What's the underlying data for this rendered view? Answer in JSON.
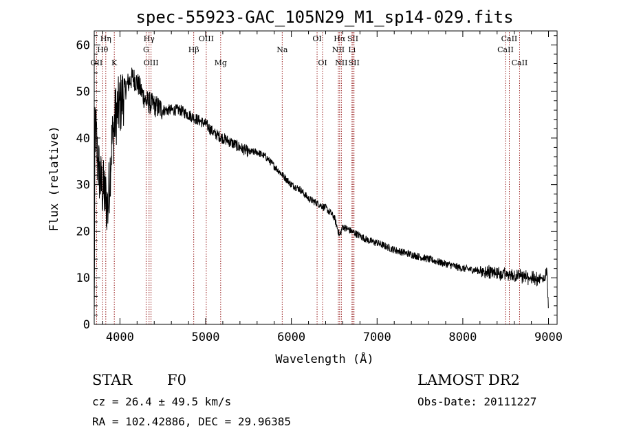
{
  "chart_data": {
    "type": "line",
    "title": "spec-55923-GAC_105N29_M1_sp14-029.fits",
    "xlabel": "Wavelength (Å)",
    "ylabel": "Flux (relative)",
    "xlim": [
      3700,
      9100
    ],
    "ylim": [
      0,
      63
    ],
    "xticks": [
      4000,
      5000,
      6000,
      7000,
      8000,
      9000
    ],
    "yticks": [
      0,
      10,
      20,
      30,
      40,
      50,
      60
    ],
    "grid": false,
    "line_color": "#000000",
    "marker_color": "#8b0000",
    "spectrum_anchors": {
      "x": [
        3700,
        3710,
        3740,
        3780,
        3820,
        3860,
        3900,
        3950,
        4000,
        4050,
        4100,
        4150,
        4200,
        4250,
        4300,
        4400,
        4500,
        4600,
        4700,
        4800,
        4900,
        5000,
        5100,
        5200,
        5300,
        5400,
        5500,
        5600,
        5700,
        5800,
        5900,
        6000,
        6100,
        6200,
        6300,
        6400,
        6500,
        6563,
        6600,
        6700,
        6800,
        6900,
        7000,
        7200,
        7400,
        7600,
        7800,
        8000,
        8200,
        8400,
        8600,
        8800,
        8900,
        8950,
        8980,
        9000
      ],
      "y": [
        1,
        44,
        35,
        30,
        28,
        25,
        38,
        45,
        47,
        50,
        52,
        53,
        52,
        50,
        48,
        47,
        46,
        46,
        46,
        45,
        44,
        43,
        41,
        40,
        39,
        38,
        37,
        37,
        36,
        34,
        32,
        30,
        29,
        27,
        26,
        25,
        23,
        19,
        21,
        20,
        19,
        18,
        17.5,
        16,
        15,
        14,
        13,
        12,
        11.5,
        11,
        10.5,
        10,
        9.5,
        10,
        12,
        2
      ]
    },
    "line_markers": [
      {
        "label": "Hη",
        "x": 3835,
        "row": 1
      },
      {
        "label": "Hθ",
        "x": 3798,
        "row": 2
      },
      {
        "label": "OII",
        "x": 3727,
        "row": 3
      },
      {
        "label": "K",
        "x": 3934,
        "row": 3
      },
      {
        "label": "Hγ",
        "x": 4340,
        "row": 1
      },
      {
        "label": "G",
        "x": 4305,
        "row": 2
      },
      {
        "label": "OIII",
        "x": 4363,
        "row": 3
      },
      {
        "label": "OIII",
        "x": 5007,
        "row": 1
      },
      {
        "label": "Hβ",
        "x": 4861,
        "row": 2
      },
      {
        "label": "Mg",
        "x": 5175,
        "row": 3
      },
      {
        "label": "Na",
        "x": 5893,
        "row": 2
      },
      {
        "label": "OI",
        "x": 6300,
        "row": 1
      },
      {
        "label": "OI",
        "x": 6364,
        "row": 3
      },
      {
        "label": "Hα",
        "x": 6563,
        "row": 1
      },
      {
        "label": "NII",
        "x": 6548,
        "row": 2
      },
      {
        "label": "NII",
        "x": 6583,
        "row": 3
      },
      {
        "label": "SII",
        "x": 6717,
        "row": 1
      },
      {
        "label": "Li",
        "x": 6707,
        "row": 2
      },
      {
        "label": "SII",
        "x": 6731,
        "row": 3
      },
      {
        "label": "CaII",
        "x": 8542,
        "row": 1
      },
      {
        "label": "CaII",
        "x": 8498,
        "row": 2
      },
      {
        "label": "CaII",
        "x": 8662,
        "row": 3
      }
    ]
  },
  "info": {
    "obj_class": "STAR",
    "subclass": "F0",
    "survey": "LAMOST DR2",
    "cz": "cz = 26.4 ± 49.5 km/s",
    "obs_date": "Obs-Date: 20111227",
    "radec": "RA = 102.42886, DEC =  29.96385"
  }
}
